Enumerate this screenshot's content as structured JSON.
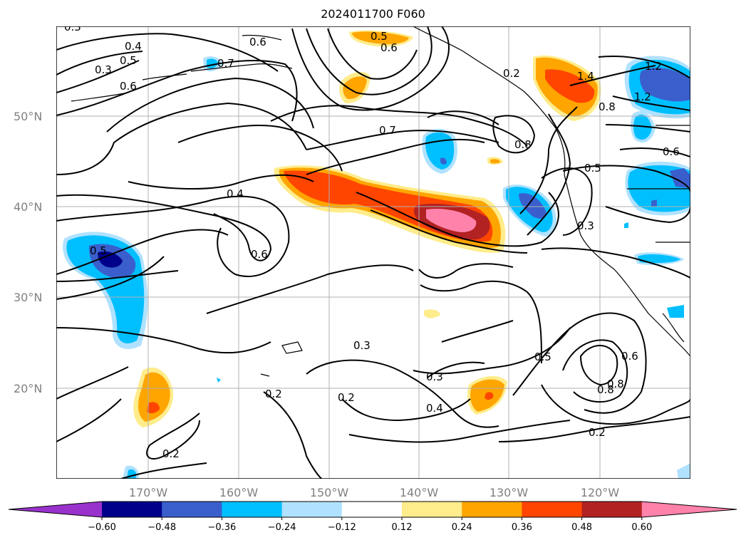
{
  "title": "2024011700 F060",
  "map": {
    "lat_labels": [
      "50°N",
      "40°N",
      "30°N",
      "20°N"
    ],
    "lon_labels": [
      "170°W",
      "160°W",
      "150°W",
      "140°W",
      "130°W",
      "120°W"
    ],
    "contour_labels": [
      "0.3",
      "0.4",
      "0.5",
      "0.6",
      "0.6",
      "0.7",
      "0.3",
      "0.4",
      "0.6",
      "0.5",
      "0.7",
      "0.8",
      "1.4",
      "0.8",
      "1.2",
      "1.2",
      "0.6",
      "0.5",
      "0.3",
      "0.3",
      "0.3",
      "0.2",
      "0.2",
      "0.4",
      "0.5",
      "0.6",
      "0.8",
      "0.8",
      "0.2",
      "0.2",
      "0.2",
      "0.5",
      "0.6"
    ]
  },
  "colorbar": {
    "ticks": [
      "−0.60",
      "−0.48",
      "−0.36",
      "−0.24",
      "−0.12",
      "0.12",
      "0.24",
      "0.36",
      "0.48",
      "0.60"
    ],
    "colors": [
      "#9932cc",
      "#00008b",
      "#3a5fcd",
      "#00bfff",
      "#b0e2ff",
      "#ffffff",
      "#ffec8b",
      "#ffa500",
      "#ff4500",
      "#b22222",
      "#ff82ab"
    ]
  }
}
